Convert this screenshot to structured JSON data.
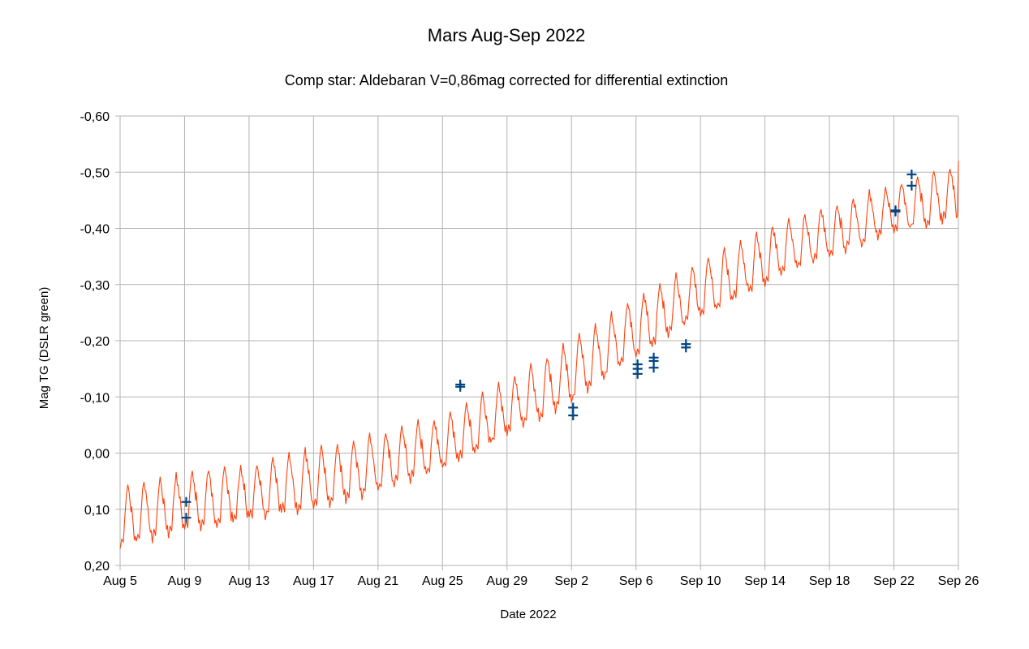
{
  "chart_data": {
    "type": "line",
    "title": "Mars Aug-Sep 2022",
    "subtitle": "Comp star: Aldebaran V=0,86mag   corrected for differential extinction",
    "xlabel": "Date 2022",
    "ylabel": "Mag TG (DSLR green)",
    "ylim": [
      0.2,
      -0.6
    ],
    "y_inverted": true,
    "xlim": [
      "2022-08-05",
      "2022-09-26"
    ],
    "y_ticks": [
      "-0,60",
      "-0,50",
      "-0,40",
      "-0,30",
      "-0,20",
      "-0,10",
      "0,00",
      "0,10",
      "0,20"
    ],
    "y_tick_values": [
      -0.6,
      -0.5,
      -0.4,
      -0.3,
      -0.2,
      -0.1,
      0,
      0.1,
      0.2
    ],
    "x_ticks": [
      "Aug 5",
      "Aug 9",
      "Aug 13",
      "Aug 17",
      "Aug 21",
      "Aug 25",
      "Aug 29",
      "Sep 2",
      "Sep 6",
      "Sep 10",
      "Sep 14",
      "Sep 18",
      "Sep 22",
      "Sep 26"
    ],
    "x_tick_dates": [
      "2022-08-05",
      "2022-08-09",
      "2022-08-13",
      "2022-08-17",
      "2022-08-21",
      "2022-08-25",
      "2022-08-29",
      "2022-09-02",
      "2022-09-06",
      "2022-09-10",
      "2022-09-14",
      "2022-09-18",
      "2022-09-22",
      "2022-09-26"
    ],
    "grid": true,
    "legend": "none",
    "series": [
      {
        "kind": "model-line",
        "color": "#ff420e",
        "daily_dates": [
          "2022-08-05",
          "2022-08-06",
          "2022-08-07",
          "2022-08-08",
          "2022-08-09",
          "2022-08-10",
          "2022-08-11",
          "2022-08-12",
          "2022-08-13",
          "2022-08-14",
          "2022-08-15",
          "2022-08-16",
          "2022-08-17",
          "2022-08-18",
          "2022-08-19",
          "2022-08-20",
          "2022-08-21",
          "2022-08-22",
          "2022-08-23",
          "2022-08-24",
          "2022-08-25",
          "2022-08-26",
          "2022-08-27",
          "2022-08-28",
          "2022-08-29",
          "2022-08-30",
          "2022-08-31",
          "2022-09-01",
          "2022-09-02",
          "2022-09-03",
          "2022-09-04",
          "2022-09-05",
          "2022-09-06",
          "2022-09-07",
          "2022-09-08",
          "2022-09-09",
          "2022-09-10",
          "2022-09-11",
          "2022-09-12",
          "2022-09-13",
          "2022-09-14",
          "2022-09-15",
          "2022-09-16",
          "2022-09-17",
          "2022-09-18",
          "2022-09-19",
          "2022-09-20",
          "2022-09-21",
          "2022-09-22",
          "2022-09-23",
          "2022-09-24",
          "2022-09-25"
        ],
        "daily_peak": [
          0.06,
          0.054,
          0.048,
          0.041,
          0.035,
          0.031,
          0.028,
          0.024,
          0.02,
          0.012,
          0.005,
          -0.003,
          -0.01,
          -0.016,
          -0.022,
          -0.029,
          -0.035,
          -0.043,
          -0.05,
          -0.058,
          -0.065,
          -0.081,
          -0.098,
          -0.114,
          -0.13,
          -0.148,
          -0.165,
          -0.183,
          -0.2,
          -0.22,
          -0.24,
          -0.26,
          -0.28,
          -0.295,
          -0.31,
          -0.325,
          -0.34,
          -0.355,
          -0.37,
          -0.385,
          -0.4,
          -0.41,
          -0.42,
          -0.43,
          -0.44,
          -0.45,
          -0.46,
          -0.47,
          -0.48,
          -0.49,
          -0.5,
          -0.51
        ],
        "daily_trough": [
          0.17,
          0.162,
          0.155,
          0.148,
          0.14,
          0.135,
          0.13,
          0.125,
          0.12,
          0.115,
          0.11,
          0.105,
          0.1,
          0.092,
          0.085,
          0.078,
          0.07,
          0.06,
          0.05,
          0.04,
          0.03,
          0.015,
          0,
          -0.015,
          -0.03,
          -0.045,
          -0.06,
          -0.075,
          -0.09,
          -0.11,
          -0.13,
          -0.15,
          -0.17,
          -0.188,
          -0.205,
          -0.223,
          -0.24,
          -0.255,
          -0.27,
          -0.285,
          -0.3,
          -0.313,
          -0.325,
          -0.338,
          -0.35,
          -0.36,
          -0.37,
          -0.38,
          -0.39,
          -0.397,
          -0.403,
          -0.41
        ],
        "end_value": -0.52
      },
      {
        "kind": "observations",
        "color": "#004586",
        "marker": "plus",
        "points": [
          {
            "x": "2022-08-09",
            "y": 0.087
          },
          {
            "x": "2022-08-09",
            "y": 0.115
          },
          {
            "x": "2022-08-26",
            "y": -0.122
          },
          {
            "x": "2022-08-26",
            "y": -0.118
          },
          {
            "x": "2022-09-02",
            "y": -0.081
          },
          {
            "x": "2022-09-02",
            "y": -0.067
          },
          {
            "x": "2022-09-06",
            "y": -0.158
          },
          {
            "x": "2022-09-06",
            "y": -0.15
          },
          {
            "x": "2022-09-06",
            "y": -0.141
          },
          {
            "x": "2022-09-07",
            "y": -0.17
          },
          {
            "x": "2022-09-07",
            "y": -0.164
          },
          {
            "x": "2022-09-07",
            "y": -0.152
          },
          {
            "x": "2022-09-09",
            "y": -0.194
          },
          {
            "x": "2022-09-09",
            "y": -0.188
          },
          {
            "x": "2022-09-22",
            "y": -0.432
          },
          {
            "x": "2022-09-22",
            "y": -0.43
          },
          {
            "x": "2022-09-23",
            "y": -0.496
          },
          {
            "x": "2022-09-23",
            "y": -0.476
          }
        ]
      }
    ]
  }
}
